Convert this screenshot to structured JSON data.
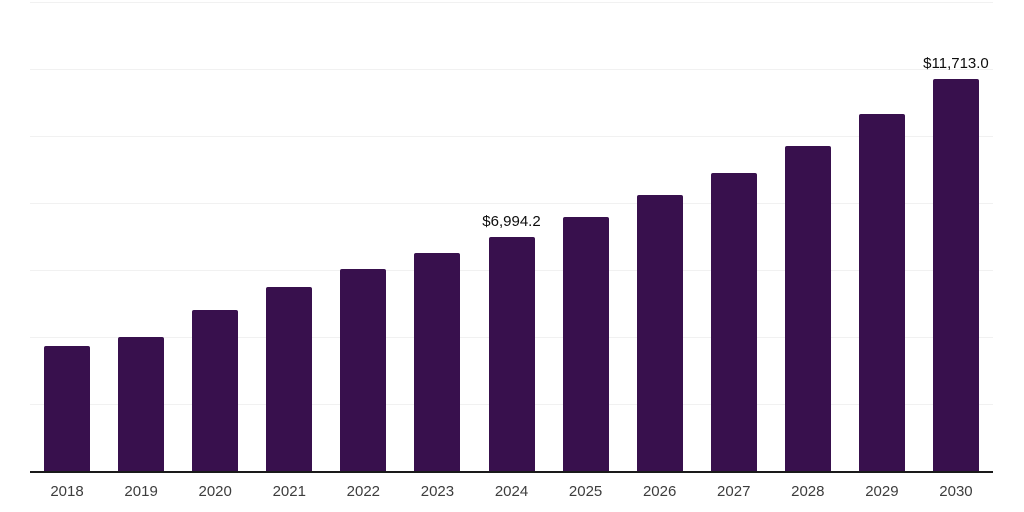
{
  "chart_data": {
    "type": "bar",
    "title": "",
    "xlabel": "",
    "ylabel": "",
    "categories": [
      "2018",
      "2019",
      "2020",
      "2021",
      "2022",
      "2023",
      "2024",
      "2025",
      "2026",
      "2027",
      "2028",
      "2029",
      "2030"
    ],
    "values": [
      3720,
      3990,
      4805,
      5495,
      6030,
      6520,
      6994.2,
      7570,
      8230,
      8900,
      9710,
      10650,
      11713.0
    ],
    "value_labels": {
      "2024": "$6,994.2",
      "2030": "$11,713.0"
    },
    "ylim": [
      0,
      14000
    ],
    "gridline_step": 2000,
    "grid": true,
    "legend": false,
    "y_axis_tick_labels_visible": false,
    "colors": {
      "bar": "#38104D",
      "axis_line": "#1a1a1a",
      "gridline": "#f1f1f1",
      "tick_label": "#3d3d3d",
      "annotation": "#0d0d0d",
      "background": "#ffffff"
    }
  }
}
